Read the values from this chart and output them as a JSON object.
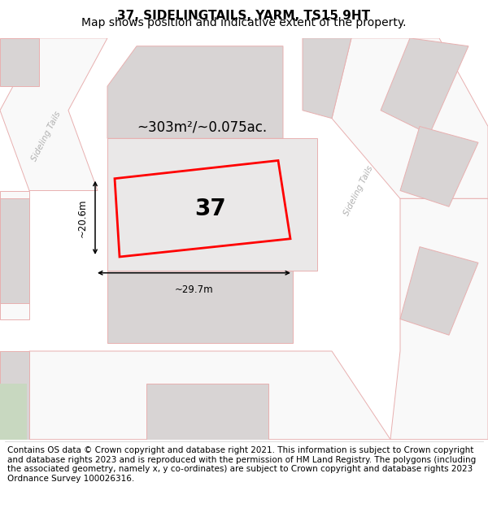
{
  "title_line1": "37, SIDELINGTAILS, YARM, TS15 9HT",
  "title_line2": "Map shows position and indicative extent of the property.",
  "footer_text": "Contains OS data © Crown copyright and database right 2021. This information is subject to Crown copyright and database rights 2023 and is reproduced with the permission of HM Land Registry. The polygons (including the associated geometry, namely x, y co-ordinates) are subject to Crown copyright and database rights 2023 Ordnance Survey 100026316.",
  "map_bg": "#f5f3f3",
  "road_color": "#e8b0b0",
  "road_fill": "#f9f9f9",
  "building_color": "#d8d4d4",
  "plot_color": "#ff0000",
  "plot_number": "37",
  "area_text": "~303m²/~0.075ac.",
  "width_text": "~29.7m",
  "height_text": "~20.6m",
  "street_name_left": "Sideling Tails",
  "street_name_right": "Sideling Tails",
  "title_fontsize": 11,
  "subtitle_fontsize": 10,
  "footer_fontsize": 7.5,
  "green_color": "#c8d8c0"
}
